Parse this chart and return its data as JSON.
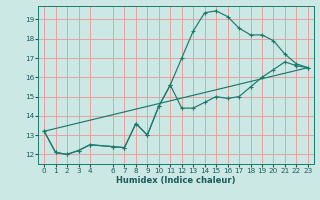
{
  "xlabel": "Humidex (Indice chaleur)",
  "bg_color": "#cce8e5",
  "grid_color": "#e8a0a0",
  "line_color": "#1a7a6e",
  "xlim": [
    -0.5,
    23.5
  ],
  "ylim": [
    11.5,
    19.7
  ],
  "xticks": [
    0,
    1,
    2,
    3,
    4,
    6,
    7,
    8,
    9,
    10,
    11,
    12,
    13,
    14,
    15,
    16,
    17,
    18,
    19,
    20,
    21,
    22,
    23
  ],
  "yticks": [
    12,
    13,
    14,
    15,
    16,
    17,
    18,
    19
  ],
  "line1_x": [
    0,
    1,
    2,
    3,
    4,
    6,
    7,
    8,
    9,
    10,
    11,
    12,
    13,
    14,
    15,
    16,
    17,
    18,
    19,
    20,
    21,
    22,
    23
  ],
  "line1_y": [
    13.2,
    12.1,
    12.0,
    12.2,
    12.5,
    12.4,
    12.35,
    13.6,
    13.0,
    14.5,
    15.6,
    17.0,
    18.4,
    19.35,
    19.45,
    19.15,
    18.55,
    18.2,
    18.2,
    17.9,
    17.2,
    16.7,
    16.5
  ],
  "line2_x": [
    0,
    1,
    2,
    3,
    4,
    6,
    7,
    8,
    9,
    10,
    11,
    12,
    13,
    14,
    15,
    16,
    17,
    18,
    19,
    20,
    21,
    22,
    23
  ],
  "line2_y": [
    13.2,
    12.1,
    12.0,
    12.2,
    12.5,
    12.4,
    12.35,
    13.6,
    13.0,
    14.5,
    15.6,
    14.4,
    14.4,
    14.7,
    15.0,
    14.9,
    15.0,
    15.5,
    16.0,
    16.4,
    16.8,
    16.6,
    16.5
  ],
  "line3_x": [
    0,
    23
  ],
  "line3_y": [
    13.2,
    16.5
  ]
}
